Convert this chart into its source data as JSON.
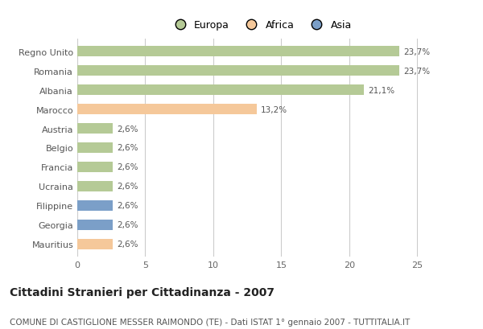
{
  "categories": [
    "Regno Unito",
    "Romania",
    "Albania",
    "Marocco",
    "Austria",
    "Belgio",
    "Francia",
    "Ucraina",
    "Filippine",
    "Georgia",
    "Mauritius"
  ],
  "values": [
    23.7,
    23.7,
    21.1,
    13.2,
    2.6,
    2.6,
    2.6,
    2.6,
    2.6,
    2.6,
    2.6
  ],
  "labels": [
    "23,7%",
    "23,7%",
    "21,1%",
    "13,2%",
    "2,6%",
    "2,6%",
    "2,6%",
    "2,6%",
    "2,6%",
    "2,6%",
    "2,6%"
  ],
  "bar_colors": [
    "#b5ca96",
    "#b5ca96",
    "#b5ca96",
    "#f5c89a",
    "#b5ca96",
    "#b5ca96",
    "#b5ca96",
    "#b5ca96",
    "#7b9fc8",
    "#7b9fc8",
    "#f5c89a"
  ],
  "legend_labels": [
    "Europa",
    "Africa",
    "Asia"
  ],
  "legend_colors": [
    "#b5ca96",
    "#f5c89a",
    "#7b9fc8"
  ],
  "title": "Cittadini Stranieri per Cittadinanza - 2007",
  "subtitle": "COMUNE DI CASTIGLIONE MESSER RAIMONDO (TE) - Dati ISTAT 1° gennaio 2007 - TUTTITALIA.IT",
  "xlim": [
    0,
    27
  ],
  "xticks": [
    0,
    5,
    10,
    15,
    20,
    25
  ],
  "background_color": "#ffffff",
  "bar_height": 0.55,
  "grid_color": "#cccccc",
  "title_fontsize": 10,
  "subtitle_fontsize": 7.5,
  "label_fontsize": 7.5,
  "tick_fontsize": 8,
  "legend_fontsize": 9
}
